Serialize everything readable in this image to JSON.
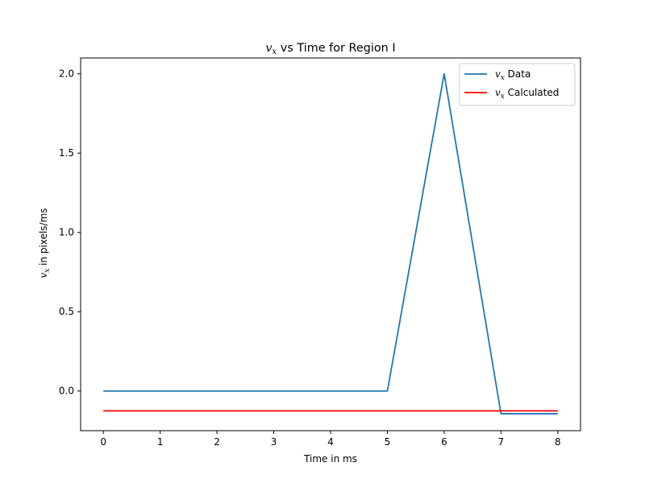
{
  "chart_data": {
    "type": "line",
    "title": {
      "var": "v",
      "sub": "x",
      "rest": " vs Time for Region I"
    },
    "xlabel": "Time in ms",
    "ylabel": {
      "var": "v",
      "sub": "x",
      "rest": " in pixels/ms"
    },
    "xlim": [
      -0.4,
      8.4
    ],
    "ylim": [
      -0.25,
      2.1
    ],
    "xticks": [
      0,
      1,
      2,
      3,
      4,
      5,
      6,
      7,
      8
    ],
    "xtick_labels": [
      "0",
      "1",
      "2",
      "3",
      "4",
      "5",
      "6",
      "7",
      "8"
    ],
    "yticks": [
      0.0,
      0.5,
      1.0,
      1.5,
      2.0
    ],
    "ytick_labels": [
      "0.0",
      "0.5",
      "1.0",
      "1.5",
      "2.0"
    ],
    "grid": false,
    "legend_position": "top-right",
    "series": [
      {
        "name": {
          "var": "v",
          "sub": "x",
          "rest": " Data"
        },
        "color": "#1f77b4",
        "x": [
          0,
          1,
          2,
          3,
          4,
          5,
          6,
          7,
          8
        ],
        "y": [
          0,
          0,
          0,
          0,
          0,
          0,
          2.0,
          -0.143,
          -0.143
        ]
      },
      {
        "name": {
          "var": "v",
          "sub": "x",
          "rest": " Calculated"
        },
        "color": "#ff0000",
        "x": [
          0,
          8
        ],
        "y": [
          -0.125,
          -0.125
        ]
      }
    ]
  }
}
